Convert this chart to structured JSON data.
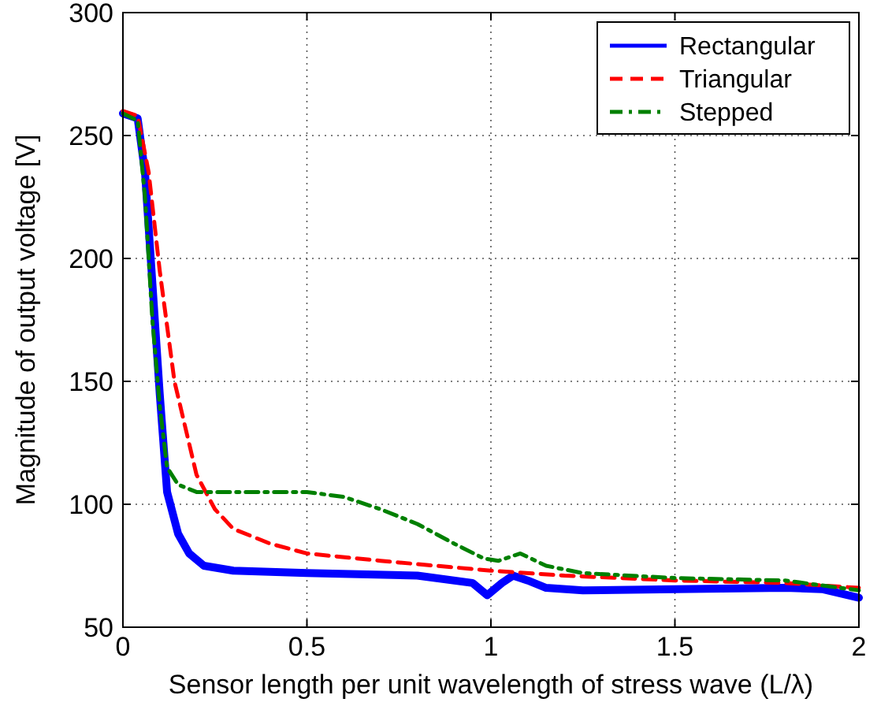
{
  "chart_data": {
    "type": "line",
    "xlabel": "Sensor length per unit wavelength of stress wave (L/λ)",
    "ylabel": "Magnitude of output voltage [V]",
    "xlim": [
      0,
      2
    ],
    "xticks": [
      0,
      0.5,
      1,
      1.5,
      2
    ],
    "ylim": [
      50,
      300
    ],
    "yticks": [
      50,
      100,
      150,
      200,
      250,
      300
    ],
    "grid": true,
    "legend": "top right",
    "marker": "none",
    "series": [
      {
        "name": "Rectangular",
        "color": "#0000ff",
        "line_style": "solid",
        "x": [
          0,
          0.04,
          0.06,
          0.08,
          0.1,
          0.12,
          0.15,
          0.18,
          0.22,
          0.3,
          0.5,
          0.8,
          0.95,
          0.99,
          1.03,
          1.06,
          1.1,
          1.15,
          1.25,
          1.5,
          1.8,
          1.9,
          2
        ],
        "values": [
          259,
          257,
          235,
          190,
          145,
          105,
          88,
          80,
          75,
          73,
          72,
          71,
          68,
          63,
          68,
          71,
          69,
          66,
          65,
          65.5,
          66,
          65.5,
          62
        ]
      },
      {
        "name": "Triangular",
        "color": "#ff0000",
        "line_style": "dashed",
        "x": [
          0,
          0.04,
          0.07,
          0.1,
          0.14,
          0.2,
          0.25,
          0.3,
          0.4,
          0.5,
          0.7,
          1,
          1.2,
          1.5,
          1.8,
          2
        ],
        "values": [
          260,
          258,
          235,
          195,
          150,
          112,
          98,
          90,
          84,
          80,
          77,
          73,
          71,
          69,
          68,
          66
        ]
      },
      {
        "name": "Stepped",
        "color": "#008000",
        "line_style": "dashdot",
        "x": [
          0,
          0.04,
          0.06,
          0.08,
          0.1,
          0.12,
          0.15,
          0.2,
          0.3,
          0.5,
          0.6,
          0.7,
          0.8,
          0.9,
          0.98,
          1.02,
          1.08,
          1.15,
          1.25,
          1.5,
          1.8,
          2
        ],
        "values": [
          259,
          256,
          225,
          175,
          140,
          115,
          108,
          105,
          105,
          105,
          103,
          98,
          92,
          84,
          78,
          77,
          80,
          75,
          72,
          70,
          69,
          65
        ]
      }
    ]
  }
}
